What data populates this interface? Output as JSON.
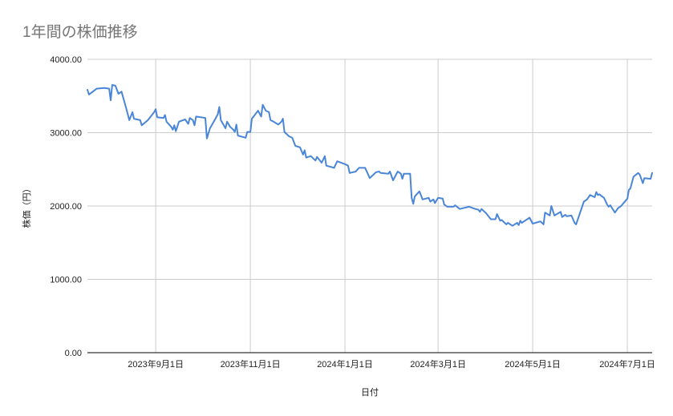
{
  "chart_data": {
    "type": "line",
    "title": "1年間の株価推移",
    "xlabel": "日付",
    "ylabel": "株価（円）",
    "ylim": [
      0,
      4000
    ],
    "xlim": [
      "2023-07-19",
      "2024-07-17"
    ],
    "grid": true,
    "legend": "none",
    "line_color": "#4a86d8",
    "y_ticks": [
      {
        "value": 0,
        "label": "0.00"
      },
      {
        "value": 1000,
        "label": "1000.00"
      },
      {
        "value": 2000,
        "label": "2000.00"
      },
      {
        "value": 3000,
        "label": "3000.00"
      },
      {
        "value": 4000,
        "label": "4000.00"
      }
    ],
    "x_ticks": [
      {
        "date": "2023-09-01",
        "label": "2023年9月1日"
      },
      {
        "date": "2023-11-01",
        "label": "2023年11月1日"
      },
      {
        "date": "2024-01-01",
        "label": "2024年1月1日"
      },
      {
        "date": "2024-03-01",
        "label": "2024年3月1日"
      },
      {
        "date": "2024-05-01",
        "label": "2024年5月1日"
      },
      {
        "date": "2024-07-01",
        "label": "2024年7月1日"
      }
    ],
    "series": [
      {
        "points": [
          [
            "2023-07-19",
            3585
          ],
          [
            "2023-07-20",
            3520
          ],
          [
            "2023-07-25",
            3600
          ],
          [
            "2023-07-30",
            3610
          ],
          [
            "2023-08-02",
            3600
          ],
          [
            "2023-08-03",
            3440
          ],
          [
            "2023-08-04",
            3650
          ],
          [
            "2023-08-06",
            3640
          ],
          [
            "2023-08-08",
            3530
          ],
          [
            "2023-08-10",
            3560
          ],
          [
            "2023-08-13",
            3330
          ],
          [
            "2023-08-15",
            3170
          ],
          [
            "2023-08-17",
            3280
          ],
          [
            "2023-08-18",
            3190
          ],
          [
            "2023-08-22",
            3170
          ],
          [
            "2023-08-23",
            3100
          ],
          [
            "2023-08-27",
            3170
          ],
          [
            "2023-08-31",
            3280
          ],
          [
            "2023-09-01",
            3320
          ],
          [
            "2023-09-02",
            3210
          ],
          [
            "2023-09-06",
            3200
          ],
          [
            "2023-09-07",
            3240
          ],
          [
            "2023-09-08",
            3150
          ],
          [
            "2023-09-11",
            3080
          ],
          [
            "2023-09-12",
            3040
          ],
          [
            "2023-09-13",
            3100
          ],
          [
            "2023-09-14",
            3020
          ],
          [
            "2023-09-16",
            3150
          ],
          [
            "2023-09-20",
            3180
          ],
          [
            "2023-09-22",
            3120
          ],
          [
            "2023-09-23",
            3200
          ],
          [
            "2023-09-25",
            3170
          ],
          [
            "2023-09-26",
            3100
          ],
          [
            "2023-09-27",
            3220
          ],
          [
            "2023-10-03",
            3200
          ],
          [
            "2023-10-04",
            2920
          ],
          [
            "2023-10-06",
            3060
          ],
          [
            "2023-10-09",
            3170
          ],
          [
            "2023-10-11",
            3250
          ],
          [
            "2023-10-12",
            3350
          ],
          [
            "2023-10-13",
            3170
          ],
          [
            "2023-10-16",
            3060
          ],
          [
            "2023-10-17",
            3150
          ],
          [
            "2023-10-19",
            3080
          ],
          [
            "2023-10-21",
            3040
          ],
          [
            "2023-10-22",
            3010
          ],
          [
            "2023-10-23",
            3110
          ],
          [
            "2023-10-24",
            2960
          ],
          [
            "2023-10-29",
            2930
          ],
          [
            "2023-10-30",
            3010
          ],
          [
            "2023-11-01",
            3010
          ],
          [
            "2023-11-02",
            3190
          ],
          [
            "2023-11-06",
            3300
          ],
          [
            "2023-11-08",
            3220
          ],
          [
            "2023-11-09",
            3380
          ],
          [
            "2023-11-11",
            3300
          ],
          [
            "2023-11-13",
            3280
          ],
          [
            "2023-11-14",
            3170
          ],
          [
            "2023-11-16",
            3150
          ],
          [
            "2023-11-19",
            3110
          ],
          [
            "2023-11-21",
            3150
          ],
          [
            "2023-11-22",
            3190
          ],
          [
            "2023-11-23",
            3010
          ],
          [
            "2023-11-26",
            2950
          ],
          [
            "2023-11-28",
            2930
          ],
          [
            "2023-11-30",
            2820
          ],
          [
            "2023-12-03",
            2800
          ],
          [
            "2023-12-05",
            2700
          ],
          [
            "2023-12-06",
            2760
          ],
          [
            "2023-12-07",
            2660
          ],
          [
            "2023-12-10",
            2680
          ],
          [
            "2023-12-13",
            2620
          ],
          [
            "2023-12-14",
            2670
          ],
          [
            "2023-12-17",
            2590
          ],
          [
            "2023-12-19",
            2680
          ],
          [
            "2023-12-20",
            2550
          ],
          [
            "2023-12-25",
            2520
          ],
          [
            "2023-12-27",
            2610
          ],
          [
            "2024-01-01",
            2570
          ],
          [
            "2024-01-03",
            2550
          ],
          [
            "2024-01-04",
            2450
          ],
          [
            "2024-01-08",
            2470
          ],
          [
            "2024-01-10",
            2520
          ],
          [
            "2024-01-14",
            2520
          ],
          [
            "2024-01-17",
            2380
          ],
          [
            "2024-01-21",
            2460
          ],
          [
            "2024-01-23",
            2470
          ],
          [
            "2024-01-24",
            2450
          ],
          [
            "2024-01-29",
            2440
          ],
          [
            "2024-01-30",
            2470
          ],
          [
            "2024-02-01",
            2350
          ],
          [
            "2024-02-04",
            2470
          ],
          [
            "2024-02-06",
            2440
          ],
          [
            "2024-02-07",
            2370
          ],
          [
            "2024-02-08",
            2440
          ],
          [
            "2024-02-12",
            2440
          ],
          [
            "2024-02-13",
            2110
          ],
          [
            "2024-02-14",
            2030
          ],
          [
            "2024-02-15",
            2130
          ],
          [
            "2024-02-18",
            2200
          ],
          [
            "2024-02-20",
            2090
          ],
          [
            "2024-02-24",
            2110
          ],
          [
            "2024-02-25",
            2060
          ],
          [
            "2024-02-27",
            2090
          ],
          [
            "2024-02-28",
            2040
          ],
          [
            "2024-03-01",
            2110
          ],
          [
            "2024-03-04",
            2100
          ],
          [
            "2024-03-05",
            2020
          ],
          [
            "2024-03-07",
            1990
          ],
          [
            "2024-03-11",
            1990
          ],
          [
            "2024-03-12",
            2010
          ],
          [
            "2024-03-15",
            1960
          ],
          [
            "2024-03-21",
            1990
          ],
          [
            "2024-03-25",
            1960
          ],
          [
            "2024-03-27",
            1950
          ],
          [
            "2024-03-28",
            1920
          ],
          [
            "2024-03-29",
            1960
          ],
          [
            "2024-04-01",
            1900
          ],
          [
            "2024-04-04",
            1820
          ],
          [
            "2024-04-07",
            1820
          ],
          [
            "2024-04-08",
            1890
          ],
          [
            "2024-04-10",
            1800
          ],
          [
            "2024-04-11",
            1810
          ],
          [
            "2024-04-14",
            1750
          ],
          [
            "2024-04-15",
            1770
          ],
          [
            "2024-04-18",
            1730
          ],
          [
            "2024-04-21",
            1770
          ],
          [
            "2024-04-22",
            1740
          ],
          [
            "2024-04-23",
            1800
          ],
          [
            "2024-04-24",
            1770
          ],
          [
            "2024-04-29",
            1840
          ],
          [
            "2024-05-01",
            1760
          ],
          [
            "2024-05-06",
            1790
          ],
          [
            "2024-05-08",
            1750
          ],
          [
            "2024-05-09",
            1910
          ],
          [
            "2024-05-12",
            1870
          ],
          [
            "2024-05-13",
            2000
          ],
          [
            "2024-05-15",
            1870
          ],
          [
            "2024-05-19",
            1920
          ],
          [
            "2024-05-20",
            1850
          ],
          [
            "2024-05-22",
            1880
          ],
          [
            "2024-05-23",
            1860
          ],
          [
            "2024-05-26",
            1870
          ],
          [
            "2024-05-28",
            1770
          ],
          [
            "2024-05-29",
            1750
          ],
          [
            "2024-06-03",
            2060
          ],
          [
            "2024-06-05",
            2090
          ],
          [
            "2024-06-07",
            2150
          ],
          [
            "2024-06-10",
            2120
          ],
          [
            "2024-06-11",
            2190
          ],
          [
            "2024-06-12",
            2150
          ],
          [
            "2024-06-13",
            2160
          ],
          [
            "2024-06-16",
            2110
          ],
          [
            "2024-06-18",
            2020
          ],
          [
            "2024-06-19",
            1990
          ],
          [
            "2024-06-20",
            2010
          ],
          [
            "2024-06-23",
            1910
          ],
          [
            "2024-06-25",
            1970
          ],
          [
            "2024-06-27",
            2000
          ],
          [
            "2024-07-01",
            2100
          ],
          [
            "2024-07-02",
            2220
          ],
          [
            "2024-07-03",
            2240
          ],
          [
            "2024-07-05",
            2400
          ],
          [
            "2024-07-08",
            2450
          ],
          [
            "2024-07-09",
            2430
          ],
          [
            "2024-07-11",
            2310
          ],
          [
            "2024-07-12",
            2380
          ],
          [
            "2024-07-16",
            2370
          ],
          [
            "2024-07-17",
            2450
          ]
        ]
      }
    ]
  }
}
